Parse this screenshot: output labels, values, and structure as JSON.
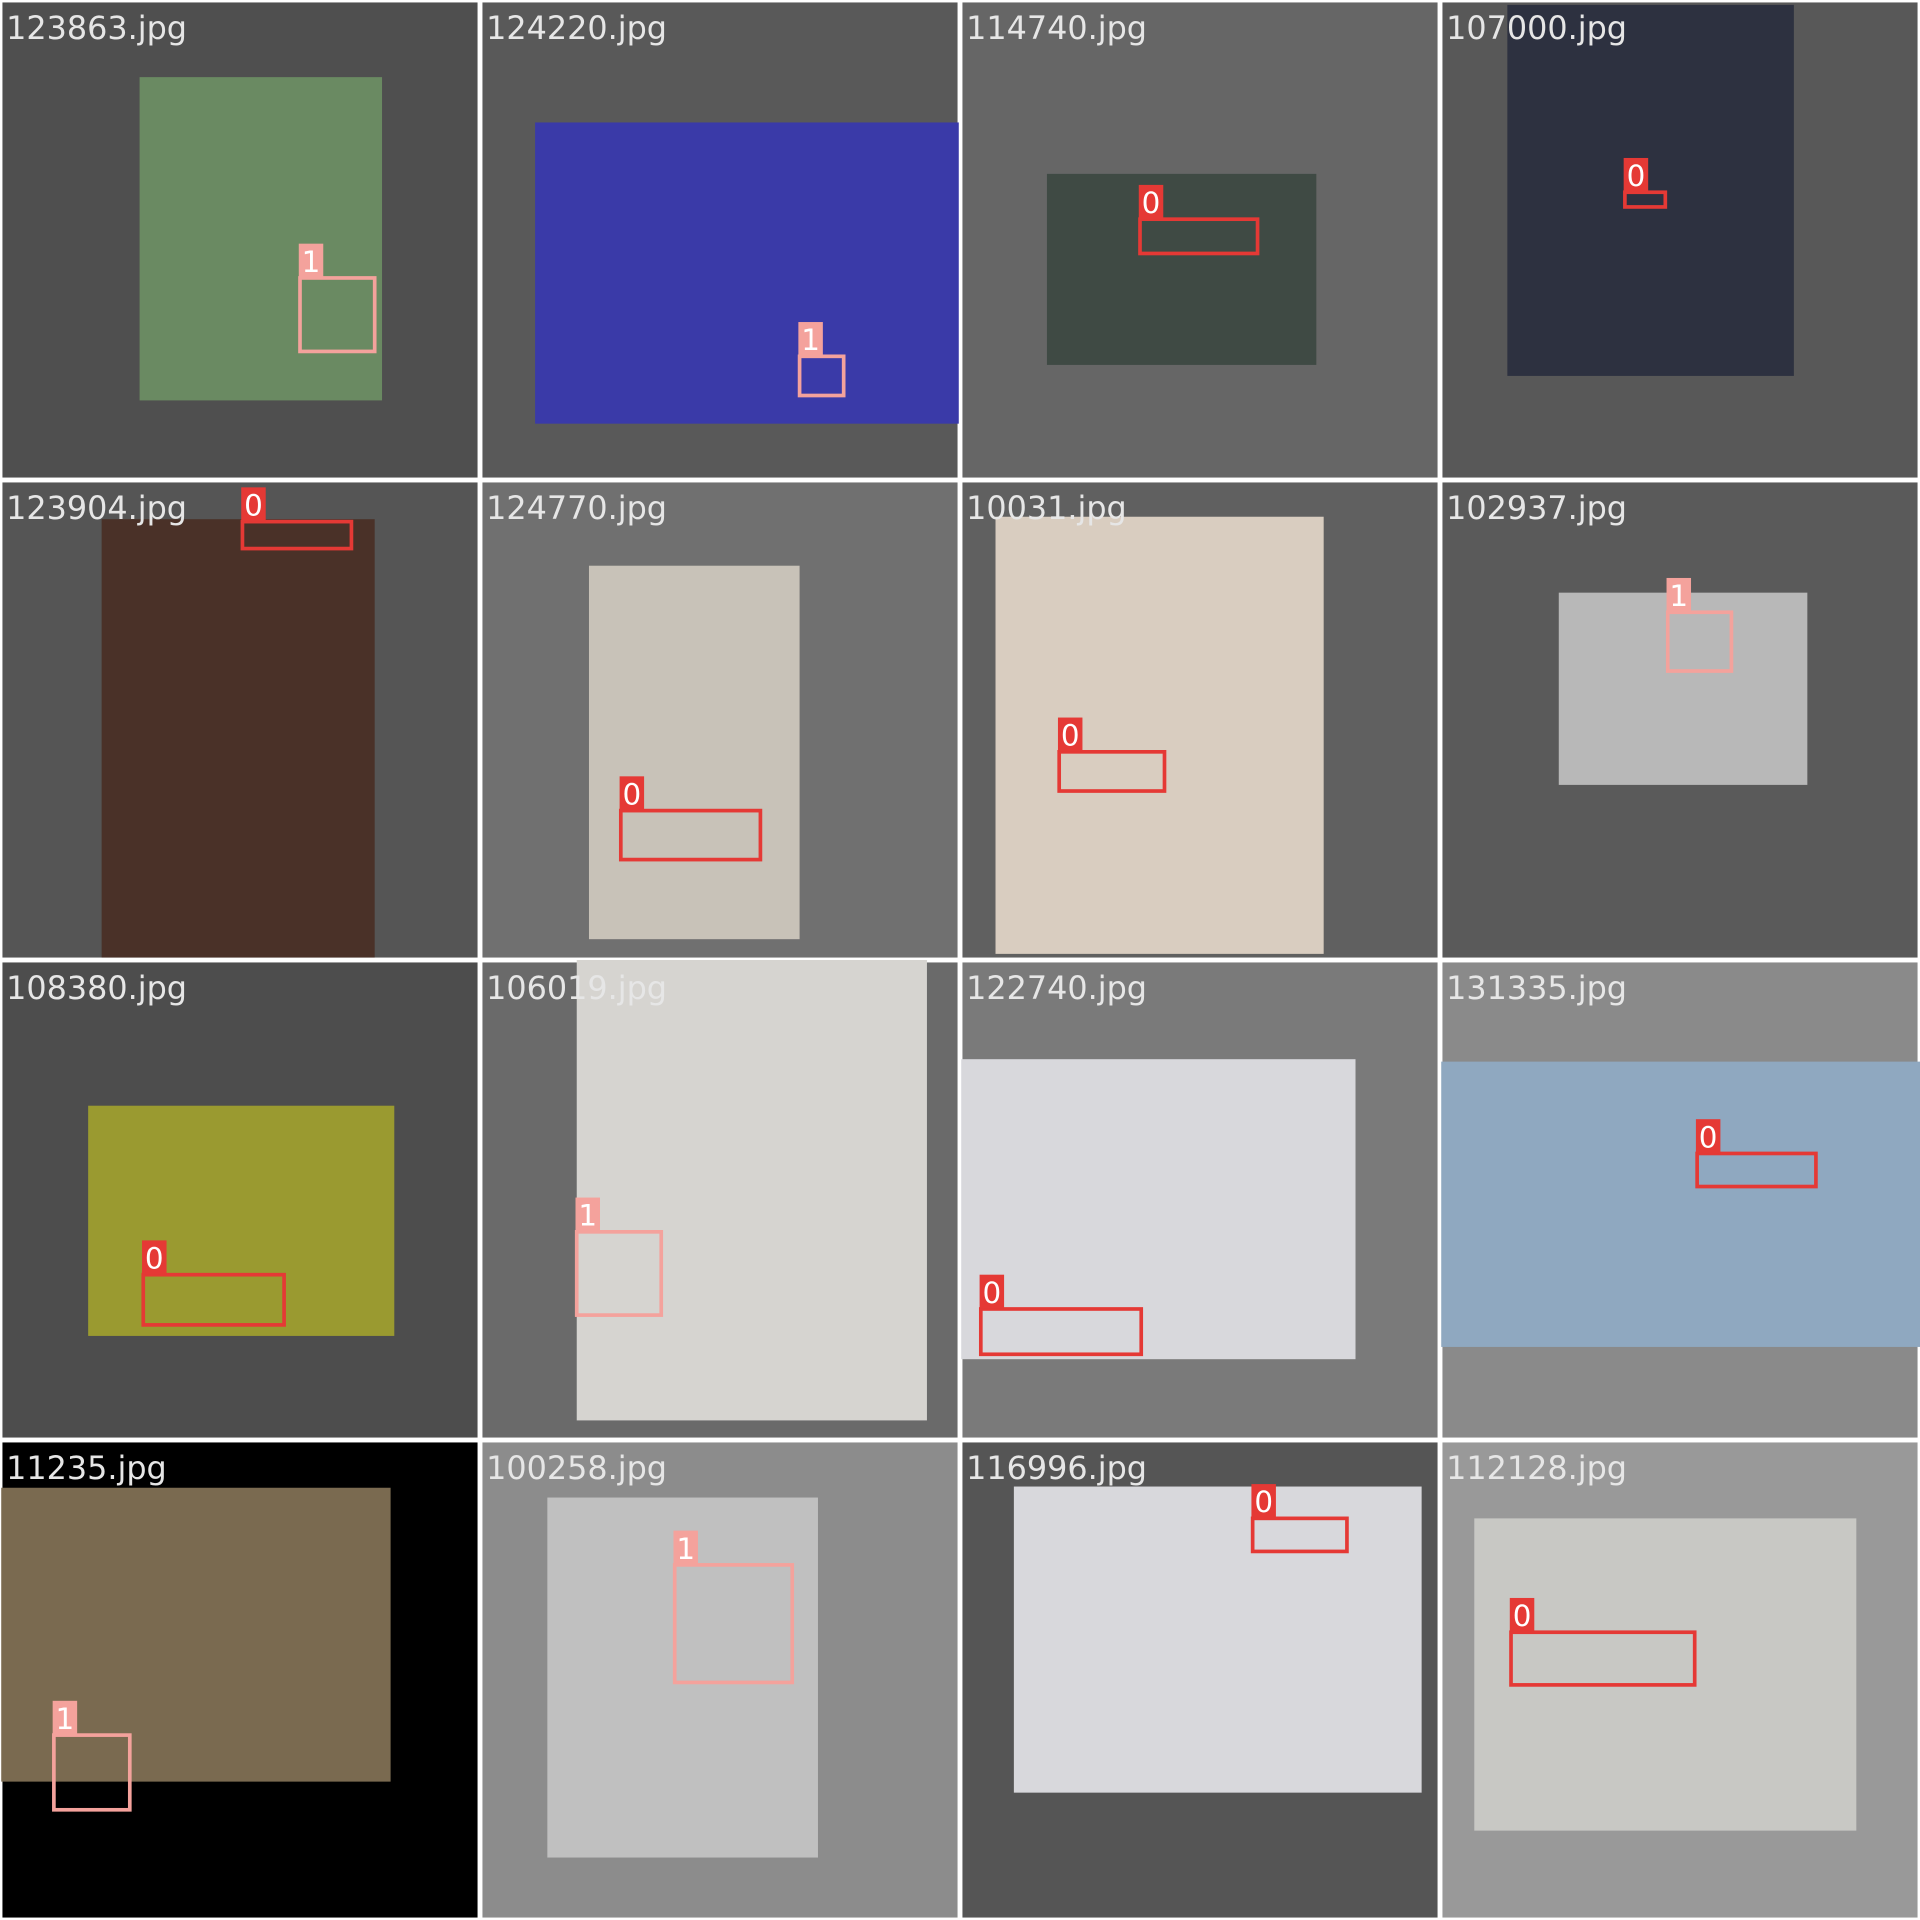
{
  "tiles": [
    {
      "filename": "123863.jpg",
      "boxes": [
        {
          "label": "1"
        }
      ]
    },
    {
      "filename": "124220.jpg",
      "boxes": [
        {
          "label": "1"
        }
      ]
    },
    {
      "filename": "114740.jpg",
      "boxes": [
        {
          "label": "0"
        }
      ]
    },
    {
      "filename": "107000.jpg",
      "boxes": [
        {
          "label": "0"
        }
      ]
    },
    {
      "filename": "123904.jpg",
      "boxes": [
        {
          "label": "0"
        }
      ]
    },
    {
      "filename": "124770.jpg",
      "boxes": [
        {
          "label": "0"
        }
      ]
    },
    {
      "filename": "10031.jpg",
      "boxes": [
        {
          "label": "0"
        }
      ]
    },
    {
      "filename": "102937.jpg",
      "boxes": [
        {
          "label": "1"
        }
      ]
    },
    {
      "filename": "108380.jpg",
      "boxes": [
        {
          "label": "0"
        }
      ]
    },
    {
      "filename": "106019.jpg",
      "boxes": [
        {
          "label": "1"
        }
      ]
    },
    {
      "filename": "122740.jpg",
      "boxes": [
        {
          "label": "0"
        }
      ]
    },
    {
      "filename": "131335.jpg",
      "boxes": [
        {
          "label": "0"
        }
      ]
    },
    {
      "filename": "11235.jpg",
      "boxes": [
        {
          "label": "1"
        }
      ]
    },
    {
      "filename": "100258.jpg",
      "boxes": [
        {
          "label": "1"
        }
      ]
    },
    {
      "filename": "116996.jpg",
      "boxes": [
        {
          "label": "0"
        }
      ]
    },
    {
      "filename": "112128.jpg",
      "boxes": [
        {
          "label": "0"
        }
      ]
    }
  ]
}
